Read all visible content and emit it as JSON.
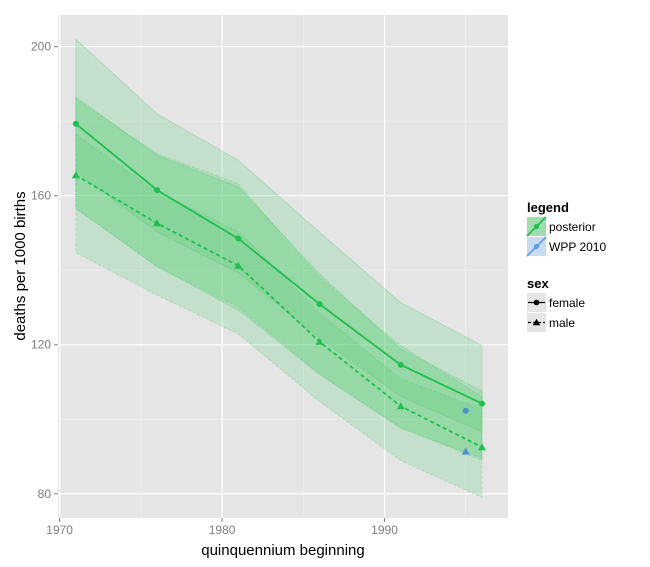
{
  "chart_data": {
    "type": "line",
    "title": "",
    "xlabel": "quinquennium beginning",
    "ylabel": "deaths per 1000 births",
    "xlim": [
      1969.9,
      1997.6
    ],
    "ylim": [
      73.5,
      208.5
    ],
    "x_ticks": [
      1970,
      1980,
      1990
    ],
    "y_ticks": [
      80,
      120,
      160,
      200
    ],
    "grid": true,
    "legend_position": "right",
    "colors": {
      "posterior": "#1ec04e",
      "wpp": "#5b9ef0",
      "wpp_point": "#4a90d0",
      "band": "#52cc73",
      "panel": "#e5e5e5",
      "grid": "#ffffff"
    },
    "posterior": {
      "x": [
        1971,
        1976,
        1981,
        1986,
        1991,
        1996
      ],
      "female": {
        "values": [
          179.3,
          161.5,
          148.5,
          130.9,
          114.6,
          104.2
        ],
        "inner_lower": [
          166.5,
          150.3,
          139.3,
          121.8,
          106.1,
          96.6
        ],
        "inner_upper": [
          186.5,
          170.8,
          162.3,
          139.0,
          118.8,
          107.6
        ],
        "outer_lower": [
          156.5,
          141.0,
          129.3,
          112.0,
          97.6,
          89.6
        ],
        "outer_upper": [
          202.0,
          182.0,
          169.5,
          150.2,
          131.3,
          119.8
        ]
      },
      "male": {
        "values": [
          165.5,
          152.6,
          141.2,
          120.8,
          103.5,
          92.5
        ],
        "inner_lower": [
          156.7,
          141.0,
          130.1,
          112.2,
          97.8,
          88.9
        ],
        "inner_upper": [
          176.5,
          161.0,
          150.5,
          128.5,
          110.9,
          102.8
        ],
        "outer_lower": [
          144.7,
          133.3,
          122.9,
          104.7,
          88.9,
          79.0
        ],
        "outer_upper": [
          186.0,
          171.3,
          163.2,
          138.1,
          119.8,
          106.1
        ]
      }
    },
    "wpp2010": {
      "x": [
        1995,
        1995
      ],
      "female": 102.3,
      "male": 91.3
    },
    "legend": {
      "title": "legend",
      "items": [
        "posterior",
        "WPP 2010"
      ]
    },
    "sex_legend": {
      "title": "sex",
      "items": [
        "female",
        "male"
      ]
    }
  }
}
